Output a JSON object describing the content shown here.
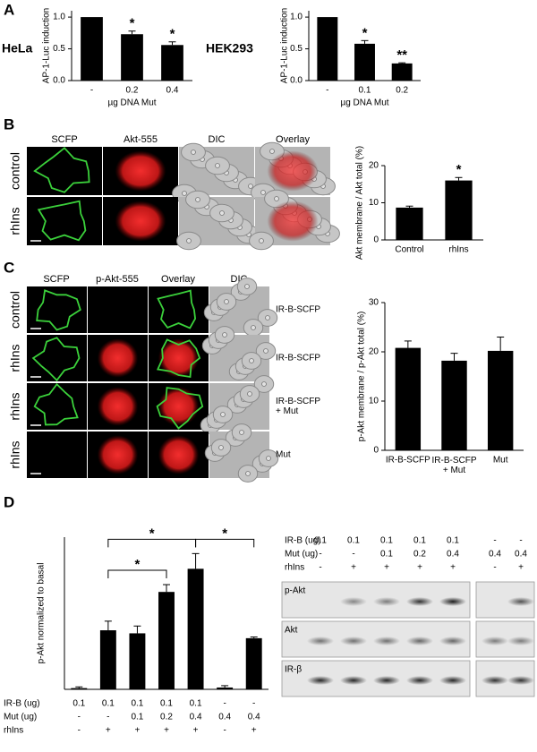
{
  "figure": {
    "panels": [
      "A",
      "B",
      "C",
      "D"
    ],
    "panel_a": {
      "cell_lines": [
        "HeLa",
        "HEK293"
      ]
    },
    "panel_b": {
      "columns": [
        "SCFP",
        "Akt-555",
        "DIC",
        "Overlay"
      ],
      "rows": [
        "control",
        "rhIns"
      ]
    },
    "panel_c": {
      "columns": [
        "SCFP",
        "p-Akt-555",
        "Overlay",
        "DIC"
      ],
      "rows": [
        "control",
        "rhIns",
        "rhIns",
        "rhIns"
      ],
      "constructs": [
        "IR-B-SCFP",
        "IR-B-SCFP",
        "IR-B-SCFP\n+ Mut",
        "Mut"
      ]
    },
    "blot": {
      "conditions": [
        {
          "label": "IR-B (ug)",
          "values": [
            "0.1",
            "0.1",
            "0.1",
            "0.1",
            "0.1",
            "-",
            "-"
          ]
        },
        {
          "label": "Mut (ug)",
          "values": [
            "-",
            "-",
            "0.1",
            "0.2",
            "0.4",
            "0.4",
            "0.4"
          ]
        },
        {
          "label": "rhIns",
          "values": [
            "-",
            "+",
            "+",
            "+",
            "+",
            "-",
            "+"
          ]
        }
      ],
      "bands": [
        "p-Akt",
        "Akt",
        "IR-β"
      ]
    }
  },
  "chart_data": [
    {
      "type": "bar",
      "ylabel": "AP-1-Luc induction",
      "xlabel": "µg DNA Mut",
      "color": "#000000",
      "categories": [
        "-",
        "0.2",
        "0.4"
      ],
      "values": [
        1.0,
        0.73,
        0.56
      ],
      "errors": [
        null,
        0.05,
        0.05
      ],
      "significance": [
        null,
        "*",
        "*"
      ],
      "ylim": [
        0,
        1.1
      ],
      "yticks": [
        {
          "value": 0,
          "label": "0.0"
        },
        {
          "value": 0.5,
          "label": "0.5"
        },
        {
          "value": 1,
          "label": "1.0"
        }
      ]
    },
    {
      "type": "bar",
      "ylabel": "AP-1-Luc induction",
      "xlabel": "µg DNA Mut",
      "color": "#000000",
      "categories": [
        "-",
        "0.1",
        "0.2"
      ],
      "values": [
        1.0,
        0.58,
        0.27
      ],
      "errors": [
        null,
        0.05,
        0.01
      ],
      "significance": [
        null,
        "*",
        "**"
      ],
      "ylim": [
        0,
        1.1
      ],
      "yticks": [
        {
          "value": 0,
          "label": "0.0"
        },
        {
          "value": 0.5,
          "label": "0.5"
        },
        {
          "value": 1,
          "label": "1.0"
        }
      ]
    },
    {
      "type": "bar",
      "ylabel": "Akt membrane / Akt total (%)",
      "color": "#000000",
      "categories": [
        "Control",
        "rhIns"
      ],
      "values": [
        8.7,
        16.0
      ],
      "errors": [
        0.4,
        0.8
      ],
      "significance": [
        null,
        "*"
      ],
      "ylim": [
        0,
        20
      ],
      "yticks": [
        0,
        10,
        20
      ]
    },
    {
      "type": "bar",
      "ylabel": "p-Akt membrane / p-Akt total (%)",
      "color": "#000000",
      "categories": [
        "IR-B-SCFP",
        "IR-B-SCFP\n+ Mut",
        "Mut"
      ],
      "values": [
        20.8,
        18.2,
        20.2
      ],
      "errors": [
        1.4,
        1.5,
        2.8
      ],
      "ylim": [
        0,
        30
      ],
      "yticks": [
        0,
        10,
        20,
        30
      ]
    },
    {
      "type": "bar",
      "ylabel": "p-Akt normalized to basal",
      "color": "#000000",
      "values": [
        2,
        97,
        92,
        160,
        198,
        3,
        84
      ],
      "errors": [
        2,
        15,
        12,
        12,
        25,
        3,
        2
      ],
      "ylim": [
        0,
        250
      ],
      "conditions": [
        {
          "label": "IR-B (ug)",
          "values": [
            "0.1",
            "0.1",
            "0.1",
            "0.1",
            "0.1",
            "-",
            "-"
          ]
        },
        {
          "label": "Mut (ug)",
          "values": [
            "-",
            "-",
            "0.1",
            "0.2",
            "0.4",
            "0.4",
            "0.4"
          ]
        },
        {
          "label": "rhIns",
          "values": [
            "-",
            "+",
            "+",
            "+",
            "+",
            "-",
            "+"
          ]
        }
      ],
      "comparisons": [
        {
          "from": 1,
          "to": 3,
          "text": "*"
        },
        {
          "from": 1,
          "to": 4,
          "text": "*"
        },
        {
          "from": 4,
          "to": 6,
          "text": "*"
        }
      ]
    }
  ]
}
